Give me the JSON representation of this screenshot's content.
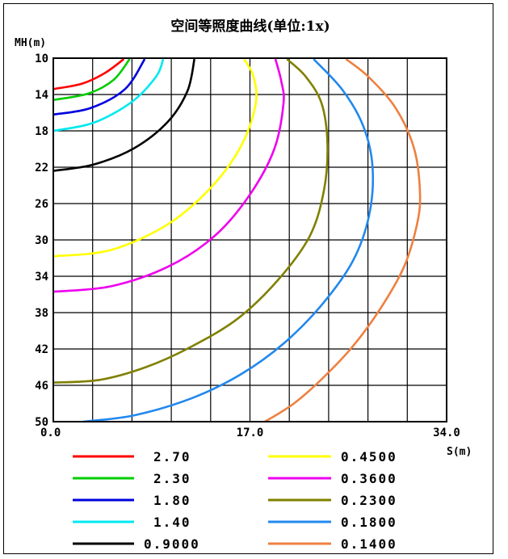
{
  "chart_data": {
    "type": "line",
    "title": "空间等照度曲线(单位:1x)",
    "ylabel": "MH(m)",
    "xlabel": "S(m)",
    "x_ticks": [
      "0.0",
      "17.0",
      "34.0"
    ],
    "y_ticks": [
      "10",
      "14",
      "18",
      "22",
      "26",
      "30",
      "34",
      "38",
      "42",
      "46",
      "50"
    ],
    "xlim": [
      0,
      34
    ],
    "ylim": [
      10,
      50
    ],
    "grid": true,
    "legend_position": "bottom",
    "series": [
      {
        "name": "2.70",
        "color": "#ff0000",
        "points": [
          [
            0,
            13.4
          ],
          [
            2.5,
            12.8
          ],
          [
            4.5,
            11.6
          ],
          [
            6.1,
            10.1
          ]
        ]
      },
      {
        "name": "2.30",
        "color": "#00cc00",
        "points": [
          [
            0,
            14.6
          ],
          [
            3,
            13.9
          ],
          [
            5.2,
            12.4
          ],
          [
            6.6,
            10.1
          ]
        ]
      },
      {
        "name": "1.80",
        "color": "#0000dd",
        "points": [
          [
            0,
            16.2
          ],
          [
            3.2,
            15.5
          ],
          [
            6.2,
            13.4
          ],
          [
            7.9,
            10.1
          ]
        ]
      },
      {
        "name": "1.40",
        "color": "#00e8f0",
        "points": [
          [
            0,
            18.0
          ],
          [
            3.5,
            17.1
          ],
          [
            6.8,
            14.8
          ],
          [
            8.9,
            12.0
          ],
          [
            9.5,
            10.1
          ]
        ]
      },
      {
        "name": "0.9000",
        "color": "#000000",
        "points": [
          [
            0,
            22.4
          ],
          [
            3.5,
            21.7
          ],
          [
            7,
            19.9
          ],
          [
            9.9,
            17.0
          ],
          [
            11.6,
            13.6
          ],
          [
            12.2,
            10.1
          ]
        ]
      },
      {
        "name": "0.4500",
        "color": "#ffff00",
        "points": [
          [
            0,
            31.8
          ],
          [
            5,
            31.1
          ],
          [
            10,
            28.2
          ],
          [
            13.8,
            24.0
          ],
          [
            16.3,
            19.5
          ],
          [
            17.5,
            15.0
          ],
          [
            17.3,
            12.0
          ],
          [
            16.5,
            10.1
          ]
        ]
      },
      {
        "name": "0.3600",
        "color": "#ee00ee",
        "points": [
          [
            0,
            35.7
          ],
          [
            5,
            35.1
          ],
          [
            10,
            32.9
          ],
          [
            14,
            29.5
          ],
          [
            17,
            25.0
          ],
          [
            19.1,
            20.0
          ],
          [
            19.9,
            15.0
          ],
          [
            19.7,
            12.5
          ],
          [
            19.2,
            10.1
          ]
        ]
      },
      {
        "name": "0.2300",
        "color": "#808000",
        "points": [
          [
            0,
            45.7
          ],
          [
            4,
            45.4
          ],
          [
            8,
            44.0
          ],
          [
            12,
            41.7
          ],
          [
            16,
            38.6
          ],
          [
            19.5,
            34.3
          ],
          [
            22.2,
            29.5
          ],
          [
            23.4,
            24.5
          ],
          [
            23.7,
            19.5
          ],
          [
            23.2,
            15.0
          ],
          [
            21.8,
            12.0
          ],
          [
            20.2,
            10.1
          ]
        ]
      },
      {
        "name": "0.1800",
        "color": "#2288ee",
        "points": [
          [
            2.6,
            50
          ],
          [
            7,
            49.3
          ],
          [
            12,
            47.4
          ],
          [
            16.2,
            44.8
          ],
          [
            20,
            41.3
          ],
          [
            23.3,
            37.0
          ],
          [
            25.9,
            32.3
          ],
          [
            27.3,
            27.3
          ],
          [
            27.6,
            22.0
          ],
          [
            26.8,
            17.5
          ],
          [
            25.0,
            13.5
          ],
          [
            22.5,
            10.1
          ]
        ]
      },
      {
        "name": "0.1400",
        "color": "#ee8040",
        "points": [
          [
            18.3,
            50
          ],
          [
            20.8,
            48.0
          ],
          [
            23.3,
            45.2
          ],
          [
            25.9,
            41.7
          ],
          [
            28.3,
            37.5
          ],
          [
            30.3,
            33.0
          ],
          [
            31.4,
            28.5
          ],
          [
            31.7,
            25.0
          ],
          [
            31.2,
            20.0
          ],
          [
            29.6,
            15.5
          ],
          [
            27.2,
            12.0
          ],
          [
            25.3,
            10.1
          ]
        ]
      }
    ]
  }
}
